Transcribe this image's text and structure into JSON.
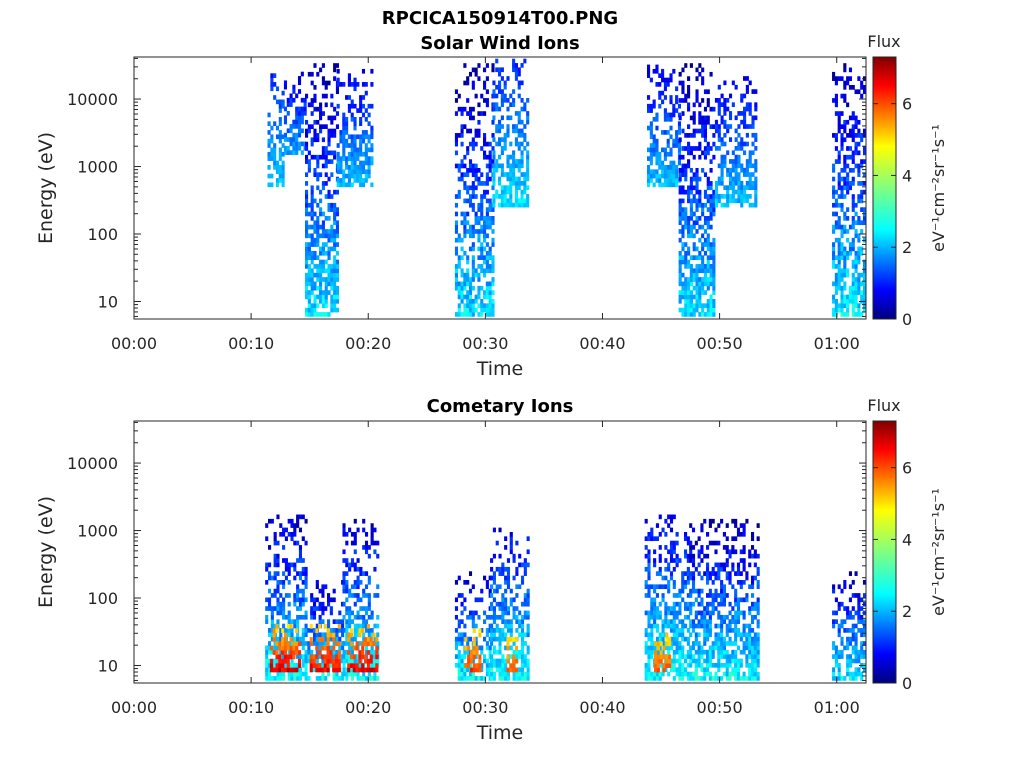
{
  "figure_title": "RPCICA150914T00.PNG",
  "chart_data": [
    {
      "type": "heatmap",
      "title": "Solar Wind Ions",
      "xlabel": "Time",
      "ylabel": "Energy (eV)",
      "yscale": "log",
      "x_range_minutes": [
        0,
        62.5
      ],
      "y_range_eV": [
        5.5,
        42000
      ],
      "x_tick_minutes": [
        0,
        10,
        20,
        30,
        40,
        50,
        60
      ],
      "x_tick_labels": [
        "00:00",
        "00:10",
        "00:20",
        "00:30",
        "00:40",
        "00:50",
        "01:00"
      ],
      "y_tick_values": [
        10,
        100,
        1000,
        10000
      ],
      "y_tick_labels": [
        "10",
        "100",
        "1000",
        "10000"
      ],
      "colorbar": {
        "label": "Flux",
        "units": "eV⁻¹cm⁻²sr⁻¹s⁻¹",
        "range": [
          0,
          7.3
        ],
        "ticks": [
          0,
          2,
          4,
          6
        ],
        "tick_labels": [
          "0",
          "2",
          "4",
          "6"
        ],
        "colormap": "jet"
      },
      "bursts": [
        {
          "start_min": 11.4,
          "end_min": 12.8,
          "emin_eV": 500,
          "emax_eV": 22000,
          "flux_low": 1.2,
          "flux_high": 2.6
        },
        {
          "start_min": 12.8,
          "end_min": 14.6,
          "emin_eV": 1500,
          "emax_eV": 25000,
          "flux_low": 0.6,
          "flux_high": 2.4
        },
        {
          "start_min": 14.6,
          "end_min": 17.3,
          "emin_eV": 6,
          "emax_eV": 30000,
          "flux_low": 0.4,
          "flux_high": 3.0
        },
        {
          "start_min": 17.3,
          "end_min": 20.4,
          "emin_eV": 500,
          "emax_eV": 25000,
          "flux_low": 0.8,
          "flux_high": 2.6
        },
        {
          "start_min": 27.4,
          "end_min": 30.6,
          "emin_eV": 6,
          "emax_eV": 33000,
          "flux_low": 0.3,
          "flux_high": 3.0
        },
        {
          "start_min": 30.6,
          "end_min": 33.6,
          "emin_eV": 250,
          "emax_eV": 35000,
          "flux_low": 1.2,
          "flux_high": 2.8
        },
        {
          "start_min": 43.8,
          "end_min": 46.5,
          "emin_eV": 500,
          "emax_eV": 28000,
          "flux_low": 0.8,
          "flux_high": 2.6
        },
        {
          "start_min": 46.5,
          "end_min": 49.6,
          "emin_eV": 6,
          "emax_eV": 33000,
          "flux_low": 0.3,
          "flux_high": 3.0
        },
        {
          "start_min": 49.6,
          "end_min": 53.2,
          "emin_eV": 250,
          "emax_eV": 20000,
          "flux_low": 0.8,
          "flux_high": 2.6
        },
        {
          "start_min": 59.6,
          "end_min": 62.4,
          "emin_eV": 6,
          "emax_eV": 30000,
          "flux_low": 0.4,
          "flux_high": 3.1
        }
      ]
    },
    {
      "type": "heatmap",
      "title": "Cometary Ions",
      "xlabel": "Time",
      "ylabel": "Energy (eV)",
      "yscale": "log",
      "x_range_minutes": [
        0,
        62.5
      ],
      "y_range_eV": [
        5.5,
        42000
      ],
      "x_tick_minutes": [
        0,
        10,
        20,
        30,
        40,
        50,
        60
      ],
      "x_tick_labels": [
        "00:00",
        "00:10",
        "00:20",
        "00:30",
        "00:40",
        "00:50",
        "01:00"
      ],
      "y_tick_values": [
        10,
        100,
        1000,
        10000
      ],
      "y_tick_labels": [
        "10",
        "100",
        "1000",
        "10000"
      ],
      "colorbar": {
        "label": "Flux",
        "units": "eV⁻¹cm⁻²sr⁻¹s⁻¹",
        "range": [
          0,
          7.3
        ],
        "ticks": [
          0,
          2,
          4,
          6
        ],
        "tick_labels": [
          "0",
          "2",
          "4",
          "6"
        ],
        "colormap": "jet"
      },
      "bursts": [
        {
          "start_min": 11.2,
          "end_min": 14.8,
          "emin_eV": 6,
          "emax_eV": 1500,
          "flux_low": 0.6,
          "flux_high": 3.2
        },
        {
          "start_min": 11.6,
          "end_min": 14.2,
          "emin_eV": 8,
          "emax_eV": 40,
          "flux_low": 4.8,
          "flux_high": 7.0
        },
        {
          "start_min": 14.8,
          "end_min": 17.8,
          "emin_eV": 6,
          "emax_eV": 160,
          "flux_low": 0.6,
          "flux_high": 3.2
        },
        {
          "start_min": 15.0,
          "end_min": 17.4,
          "emin_eV": 8,
          "emax_eV": 40,
          "flux_low": 4.8,
          "flux_high": 6.8
        },
        {
          "start_min": 17.8,
          "end_min": 20.8,
          "emin_eV": 6,
          "emax_eV": 1400,
          "flux_low": 0.6,
          "flux_high": 3.2
        },
        {
          "start_min": 18.2,
          "end_min": 20.6,
          "emin_eV": 8,
          "emax_eV": 40,
          "flux_low": 4.8,
          "flux_high": 6.9
        },
        {
          "start_min": 27.4,
          "end_min": 30.4,
          "emin_eV": 6,
          "emax_eV": 220,
          "flux_low": 0.6,
          "flux_high": 3.2
        },
        {
          "start_min": 28.2,
          "end_min": 29.6,
          "emin_eV": 8,
          "emax_eV": 35,
          "flux_low": 4.6,
          "flux_high": 6.3
        },
        {
          "start_min": 30.4,
          "end_min": 33.6,
          "emin_eV": 6,
          "emax_eV": 1000,
          "flux_low": 0.8,
          "flux_high": 3.2
        },
        {
          "start_min": 31.8,
          "end_min": 32.6,
          "emin_eV": 8,
          "emax_eV": 30,
          "flux_low": 4.6,
          "flux_high": 6.0
        },
        {
          "start_min": 43.6,
          "end_min": 47.4,
          "emin_eV": 6,
          "emax_eV": 1600,
          "flux_low": 0.8,
          "flux_high": 3.2
        },
        {
          "start_min": 44.4,
          "end_min": 45.8,
          "emin_eV": 8,
          "emax_eV": 35,
          "flux_low": 4.6,
          "flux_high": 6.0
        },
        {
          "start_min": 47.4,
          "end_min": 53.4,
          "emin_eV": 6,
          "emax_eV": 1300,
          "flux_low": 0.4,
          "flux_high": 3.2
        },
        {
          "start_min": 59.6,
          "end_min": 62.4,
          "emin_eV": 6,
          "emax_eV": 220,
          "flux_low": 0.6,
          "flux_high": 3.0
        }
      ]
    }
  ]
}
